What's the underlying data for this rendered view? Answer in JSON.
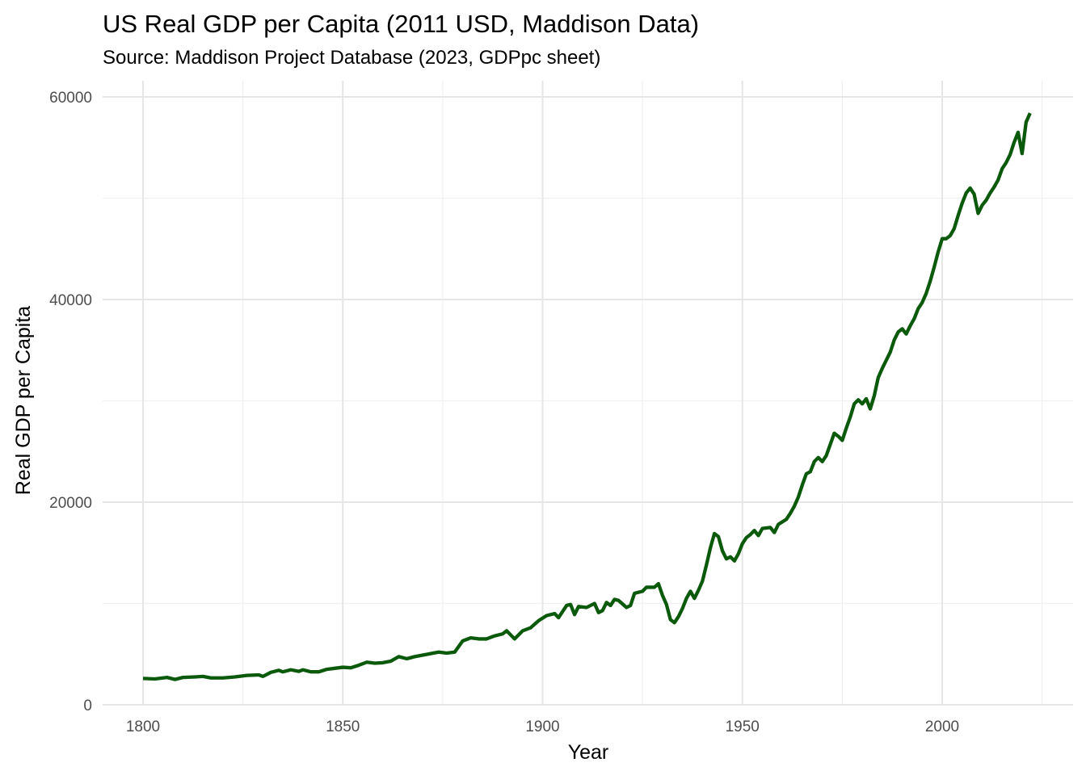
{
  "chart_data": {
    "type": "line",
    "title": "US Real GDP per Capita (2011 USD, Maddison Data)",
    "subtitle": "Source: Maddison Project Database (2023, GDPpc sheet)",
    "xlabel": "Year",
    "ylabel": "Real GDP per Capita",
    "xlim": [
      1790,
      2024
    ],
    "ylim": [
      0,
      60000
    ],
    "x_ticks": [
      1800,
      1850,
      1900,
      1950,
      2000
    ],
    "y_ticks": [
      0,
      20000,
      40000,
      60000
    ],
    "grid": true,
    "line_color": "#0b5a0b",
    "series": [
      {
        "points": [
          [
            1800,
            2600
          ],
          [
            1803,
            2550
          ],
          [
            1806,
            2700
          ],
          [
            1808,
            2500
          ],
          [
            1810,
            2700
          ],
          [
            1813,
            2750
          ],
          [
            1815,
            2800
          ],
          [
            1817,
            2650
          ],
          [
            1820,
            2650
          ],
          [
            1823,
            2750
          ],
          [
            1826,
            2900
          ],
          [
            1829,
            2950
          ],
          [
            1830,
            2800
          ],
          [
            1832,
            3200
          ],
          [
            1834,
            3400
          ],
          [
            1835,
            3250
          ],
          [
            1837,
            3450
          ],
          [
            1839,
            3300
          ],
          [
            1840,
            3450
          ],
          [
            1842,
            3250
          ],
          [
            1844,
            3250
          ],
          [
            1846,
            3500
          ],
          [
            1848,
            3600
          ],
          [
            1850,
            3700
          ],
          [
            1852,
            3650
          ],
          [
            1854,
            3900
          ],
          [
            1856,
            4200
          ],
          [
            1858,
            4100
          ],
          [
            1860,
            4150
          ],
          [
            1862,
            4300
          ],
          [
            1864,
            4750
          ],
          [
            1866,
            4550
          ],
          [
            1868,
            4750
          ],
          [
            1870,
            4900
          ],
          [
            1872,
            5050
          ],
          [
            1874,
            5200
          ],
          [
            1876,
            5100
          ],
          [
            1878,
            5200
          ],
          [
            1880,
            6300
          ],
          [
            1882,
            6600
          ],
          [
            1884,
            6500
          ],
          [
            1886,
            6500
          ],
          [
            1888,
            6800
          ],
          [
            1890,
            7000
          ],
          [
            1891,
            7300
          ],
          [
            1893,
            6500
          ],
          [
            1895,
            7300
          ],
          [
            1897,
            7600
          ],
          [
            1899,
            8300
          ],
          [
            1901,
            8800
          ],
          [
            1903,
            9000
          ],
          [
            1904,
            8600
          ],
          [
            1906,
            9800
          ],
          [
            1907,
            9900
          ],
          [
            1908,
            8900
          ],
          [
            1909,
            9700
          ],
          [
            1911,
            9600
          ],
          [
            1913,
            10000
          ],
          [
            1914,
            9100
          ],
          [
            1915,
            9300
          ],
          [
            1916,
            10100
          ],
          [
            1917,
            9800
          ],
          [
            1918,
            10400
          ],
          [
            1919,
            10300
          ],
          [
            1921,
            9600
          ],
          [
            1922,
            9800
          ],
          [
            1923,
            11000
          ],
          [
            1925,
            11200
          ],
          [
            1926,
            11600
          ],
          [
            1928,
            11600
          ],
          [
            1929,
            11950
          ],
          [
            1930,
            10800
          ],
          [
            1931,
            9900
          ],
          [
            1932,
            8400
          ],
          [
            1933,
            8100
          ],
          [
            1934,
            8700
          ],
          [
            1935,
            9500
          ],
          [
            1936,
            10500
          ],
          [
            1937,
            11200
          ],
          [
            1938,
            10500
          ],
          [
            1939,
            11300
          ],
          [
            1940,
            12200
          ],
          [
            1941,
            13800
          ],
          [
            1942,
            15500
          ],
          [
            1943,
            16900
          ],
          [
            1944,
            16600
          ],
          [
            1945,
            15200
          ],
          [
            1946,
            14400
          ],
          [
            1947,
            14600
          ],
          [
            1948,
            14200
          ],
          [
            1949,
            14900
          ],
          [
            1950,
            15900
          ],
          [
            1951,
            16500
          ],
          [
            1952,
            16800
          ],
          [
            1953,
            17200
          ],
          [
            1954,
            16700
          ],
          [
            1955,
            17400
          ],
          [
            1957,
            17500
          ],
          [
            1958,
            17000
          ],
          [
            1959,
            17800
          ],
          [
            1961,
            18300
          ],
          [
            1962,
            18900
          ],
          [
            1963,
            19600
          ],
          [
            1964,
            20500
          ],
          [
            1965,
            21700
          ],
          [
            1966,
            22800
          ],
          [
            1967,
            23000
          ],
          [
            1968,
            24000
          ],
          [
            1969,
            24400
          ],
          [
            1970,
            24000
          ],
          [
            1971,
            24600
          ],
          [
            1972,
            25700
          ],
          [
            1973,
            26800
          ],
          [
            1974,
            26500
          ],
          [
            1975,
            26100
          ],
          [
            1976,
            27300
          ],
          [
            1977,
            28400
          ],
          [
            1978,
            29700
          ],
          [
            1979,
            30100
          ],
          [
            1980,
            29700
          ],
          [
            1981,
            30200
          ],
          [
            1982,
            29200
          ],
          [
            1983,
            30500
          ],
          [
            1984,
            32300
          ],
          [
            1985,
            33200
          ],
          [
            1986,
            34000
          ],
          [
            1987,
            34800
          ],
          [
            1988,
            36000
          ],
          [
            1989,
            36800
          ],
          [
            1990,
            37100
          ],
          [
            1991,
            36600
          ],
          [
            1992,
            37400
          ],
          [
            1993,
            38100
          ],
          [
            1994,
            39100
          ],
          [
            1995,
            39700
          ],
          [
            1996,
            40600
          ],
          [
            1997,
            41800
          ],
          [
            1998,
            43200
          ],
          [
            1999,
            44700
          ],
          [
            2000,
            46000
          ],
          [
            2001,
            46000
          ],
          [
            2002,
            46300
          ],
          [
            2003,
            47000
          ],
          [
            2004,
            48300
          ],
          [
            2005,
            49500
          ],
          [
            2006,
            50500
          ],
          [
            2007,
            51000
          ],
          [
            2008,
            50400
          ],
          [
            2009,
            48500
          ],
          [
            2010,
            49300
          ],
          [
            2011,
            49800
          ],
          [
            2012,
            50500
          ],
          [
            2013,
            51100
          ],
          [
            2014,
            51800
          ],
          [
            2015,
            52900
          ],
          [
            2016,
            53500
          ],
          [
            2017,
            54300
          ],
          [
            2018,
            55500
          ],
          [
            2019,
            56500
          ],
          [
            2020,
            54400
          ],
          [
            2021,
            57500
          ],
          [
            2022,
            58400
          ]
        ]
      }
    ]
  }
}
